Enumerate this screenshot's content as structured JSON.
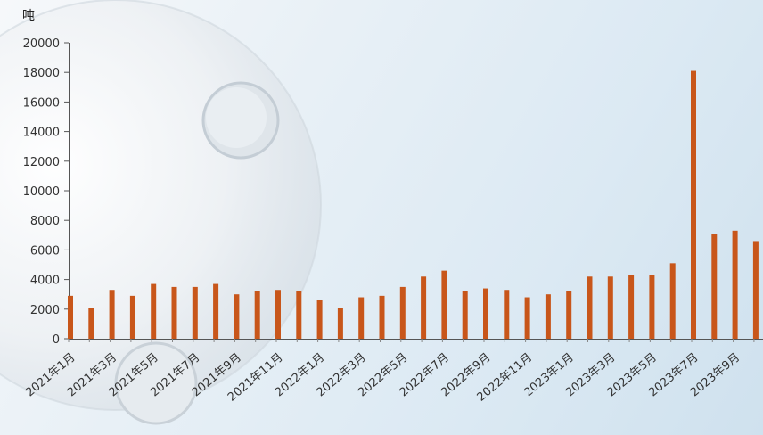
{
  "chart_data": {
    "type": "bar",
    "unit_label": "吨",
    "y_ticks": [
      "0",
      "2000",
      "4000",
      "6000",
      "8000",
      "10000",
      "12000",
      "14000",
      "16000",
      "18000",
      "20000"
    ],
    "ylim": [
      0,
      20000
    ],
    "categories": [
      "2021年1月",
      "2021年2月",
      "2021年3月",
      "2021年4月",
      "2021年5月",
      "2021年6月",
      "2021年7月",
      "2021年8月",
      "2021年9月",
      "2021年10月",
      "2021年11月",
      "2021年12月",
      "2022年1月",
      "2022年2月",
      "2022年3月",
      "2022年4月",
      "2022年5月",
      "2022年6月",
      "2022年7月",
      "2022年8月",
      "2022年9月",
      "2022年10月",
      "2022年11月",
      "2022年12月",
      "2023年1月",
      "2023年2月",
      "2023年3月",
      "2023年4月",
      "2023年5月",
      "2023年6月",
      "2023年7月",
      "2023年8月",
      "2023年9月",
      "2023年10月"
    ],
    "x_tick_labels": [
      "2021年1月",
      "2021年3月",
      "2021年5月",
      "2021年7月",
      "2021年9月",
      "2021年11月",
      "2022年1月",
      "2022年3月",
      "2022年5月",
      "2022年7月",
      "2022年9月",
      "2022年11月",
      "2023年1月",
      "2023年3月",
      "2023年5月",
      "2023年7月",
      "2023年9月"
    ],
    "series": [
      {
        "values": [
          2900,
          2100,
          3300,
          2900,
          3700,
          3500,
          3500,
          3700,
          3000,
          3200,
          3300,
          3200,
          2600,
          2100,
          2800,
          2900,
          3500,
          4200,
          4600,
          3200,
          3400,
          3300,
          2800,
          3000,
          3200,
          4200,
          4200,
          4300,
          4300,
          5100,
          18100,
          7100,
          7300,
          6600
        ]
      }
    ],
    "bar_color": "#c8561a",
    "grid": false
  }
}
